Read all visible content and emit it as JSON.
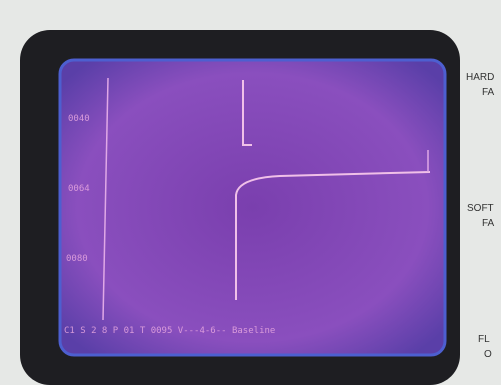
{
  "screen": {
    "axis_labels": [
      "0040",
      "0064",
      "0080"
    ],
    "status_line": "C1 S  2 8 P 01 T 0095 V---4-6-- Baseline"
  },
  "side_panel": {
    "labels": [
      "HARD",
      "FA",
      "SOFT",
      "FA",
      "FL",
      "O"
    ]
  }
}
